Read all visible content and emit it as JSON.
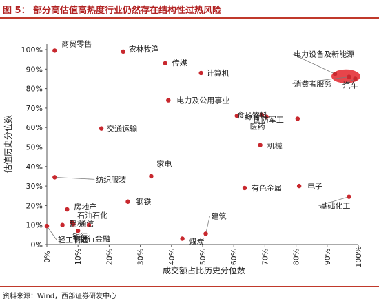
{
  "figure": {
    "number": "图 5：",
    "title": "部分高估值高热度行业仍然存在结构性过热风险",
    "source": "资料来源：Wind，西部证券研发中心"
  },
  "colors": {
    "accent": "#c0392b",
    "point": "#c8282e",
    "highlight": "#e3242b",
    "axis": "#555555"
  },
  "chart_data": {
    "type": "scatter",
    "xlabel": "成交额占比历史分位数",
    "ylabel": "估值历史分位数",
    "xlim": [
      0,
      100
    ],
    "ylim": [
      0,
      100
    ],
    "x_ticks": [
      "0%",
      "10%",
      "20%",
      "30%",
      "40%",
      "50%",
      "60%",
      "70%",
      "80%",
      "90%",
      "100%"
    ],
    "y_ticks": [
      "0%",
      "10%",
      "20%",
      "30%",
      "40%",
      "50%",
      "60%",
      "70%",
      "80%",
      "90%",
      "100%"
    ],
    "grid": false,
    "highlight_region": "电力设备及新能源 / 消费者服务 / 汽车",
    "points": [
      {
        "label": "商贸零售",
        "x": 2.5,
        "y": 99.5
      },
      {
        "label": "农林牧渔",
        "x": 24.5,
        "y": 99
      },
      {
        "label": "传媒",
        "x": 38,
        "y": 93
      },
      {
        "label": "计算机",
        "x": 49.5,
        "y": 88
      },
      {
        "label": "电力及公用事业",
        "x": 39,
        "y": 74
      },
      {
        "label": "电力设备及新能源",
        "x": 92.5,
        "y": 87.5
      },
      {
        "label": "消费者服务",
        "x": 97,
        "y": 86
      },
      {
        "label": "汽车",
        "x": 99,
        "y": 85
      },
      {
        "label": "国防军工",
        "x": 80.5,
        "y": 64.5
      },
      {
        "label": "食品饮料",
        "x": 69,
        "y": 66.5
      },
      {
        "label": "综合",
        "x": 61,
        "y": 66
      },
      {
        "label": "医药",
        "x": 70.5,
        "y": 65.5
      },
      {
        "label": "交通运输",
        "x": 17.5,
        "y": 59.5
      },
      {
        "label": "机械",
        "x": 68.5,
        "y": 51
      },
      {
        "label": "家电",
        "x": 33.5,
        "y": 35
      },
      {
        "label": "纺织服装",
        "x": 2.5,
        "y": 34.5
      },
      {
        "label": "有色金属",
        "x": 63.5,
        "y": 29
      },
      {
        "label": "电子",
        "x": 81,
        "y": 30
      },
      {
        "label": "基础化工",
        "x": 97,
        "y": 24.5
      },
      {
        "label": "钢铁",
        "x": 26,
        "y": 22
      },
      {
        "label": "房地产",
        "x": 6.5,
        "y": 18
      },
      {
        "label": "石油石化",
        "x": 8,
        "y": 11.5
      },
      {
        "label": "通信",
        "x": 8.5,
        "y": 10.5
      },
      {
        "label": "银行",
        "x": 10,
        "y": 7
      },
      {
        "label": "建材",
        "x": 5,
        "y": 10
      },
      {
        "label": "轻工制造",
        "x": 0,
        "y": 9.5
      },
      {
        "label": "非银行金融",
        "x": 13.5,
        "y": 10
      },
      {
        "label": "建筑",
        "x": 51,
        "y": 5.5
      },
      {
        "label": "煤炭",
        "x": 43.5,
        "y": 3
      }
    ],
    "annotations": [
      {
        "text": "商贸零售",
        "target": "商贸零售"
      },
      {
        "text": "农林牧渔",
        "target": "农林牧渔"
      },
      {
        "text": "传媒",
        "target": "传媒"
      },
      {
        "text": "计算机",
        "target": "计算机"
      },
      {
        "text": "电力及公用事业",
        "target": "电力及公用事业"
      },
      {
        "text": "电力设备及新能源",
        "target": "电力设备及新能源"
      },
      {
        "text": "消费者服务",
        "target": "消费者服务"
      },
      {
        "text": "汽车",
        "target": "汽车"
      },
      {
        "text": "国防军工",
        "target": "国防军工"
      },
      {
        "text": "食品饮料",
        "target": "食品饮料"
      },
      {
        "text": "综合",
        "target": "综合"
      },
      {
        "text": "医药",
        "target": "医药"
      },
      {
        "text": "交通运输",
        "target": "交通运输"
      },
      {
        "text": "机械",
        "target": "机械"
      },
      {
        "text": "家电",
        "target": "家电"
      },
      {
        "text": "纺织服装",
        "target": "纺织服装"
      },
      {
        "text": "有色金属",
        "target": "有色金属"
      },
      {
        "text": "电子",
        "target": "电子"
      },
      {
        "text": "基础化工",
        "target": "基础化工"
      },
      {
        "text": "钢铁",
        "target": "钢铁"
      },
      {
        "text": "房地产",
        "target": "房地产"
      },
      {
        "text": "石油石化",
        "target": "石油石化"
      },
      {
        "text": "通信",
        "target": "通信"
      },
      {
        "text": "银行",
        "target": "银行"
      },
      {
        "text": "建材",
        "target": "建材"
      },
      {
        "text": "轻工制造",
        "target": "轻工制造"
      },
      {
        "text": "非银行金融",
        "target": "非银行金融"
      },
      {
        "text": "建筑",
        "target": "建筑"
      },
      {
        "text": "煤炭",
        "target": "煤炭"
      }
    ]
  }
}
